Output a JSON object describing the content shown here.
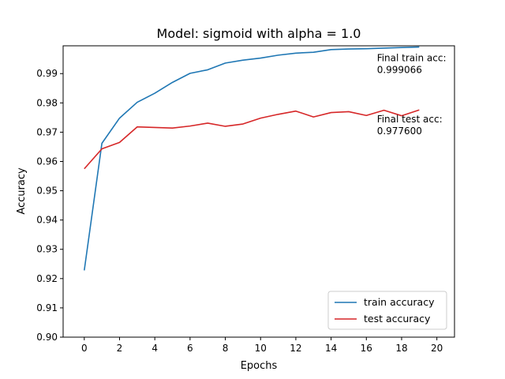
{
  "chart_data": {
    "type": "line",
    "title": "Model: sigmoid with alpha = 1.0",
    "xlabel": "Epochs",
    "ylabel": "Accuracy",
    "xlim": [
      -1.2,
      21.0
    ],
    "ylim": [
      0.9,
      0.9995
    ],
    "xticks": [
      0,
      2,
      4,
      6,
      8,
      10,
      12,
      14,
      16,
      18,
      20
    ],
    "yticks": [
      0.9,
      0.91,
      0.92,
      0.93,
      0.94,
      0.95,
      0.96,
      0.97,
      0.98,
      0.99
    ],
    "grid": false,
    "legend_position": "lower-right",
    "x": [
      0,
      1,
      2,
      3,
      4,
      5,
      6,
      7,
      8,
      9,
      10,
      11,
      12,
      13,
      14,
      15,
      16,
      17,
      18,
      19
    ],
    "series": [
      {
        "name": "train accuracy",
        "color": "#1f77b4",
        "values": [
          0.9228,
          0.9662,
          0.9748,
          0.9802,
          0.9833,
          0.987,
          0.9901,
          0.9913,
          0.9936,
          0.9946,
          0.9953,
          0.9963,
          0.997,
          0.9973,
          0.9982,
          0.9984,
          0.9985,
          0.9987,
          0.9989,
          0.99907
        ]
      },
      {
        "name": "test accuracy",
        "color": "#d62728",
        "values": [
          0.9575,
          0.9643,
          0.9665,
          0.9718,
          0.9716,
          0.9714,
          0.9721,
          0.9731,
          0.972,
          0.9728,
          0.9748,
          0.9761,
          0.9772,
          0.9752,
          0.9767,
          0.977,
          0.9757,
          0.9775,
          0.9756,
          0.9776
        ]
      }
    ],
    "annotations": [
      {
        "label": "Final train acc:",
        "value": "0.999066",
        "x": 16.6,
        "y": 0.9935
      },
      {
        "label": "Final test acc:",
        "value": "0.977600",
        "x": 16.6,
        "y": 0.9725
      }
    ]
  }
}
